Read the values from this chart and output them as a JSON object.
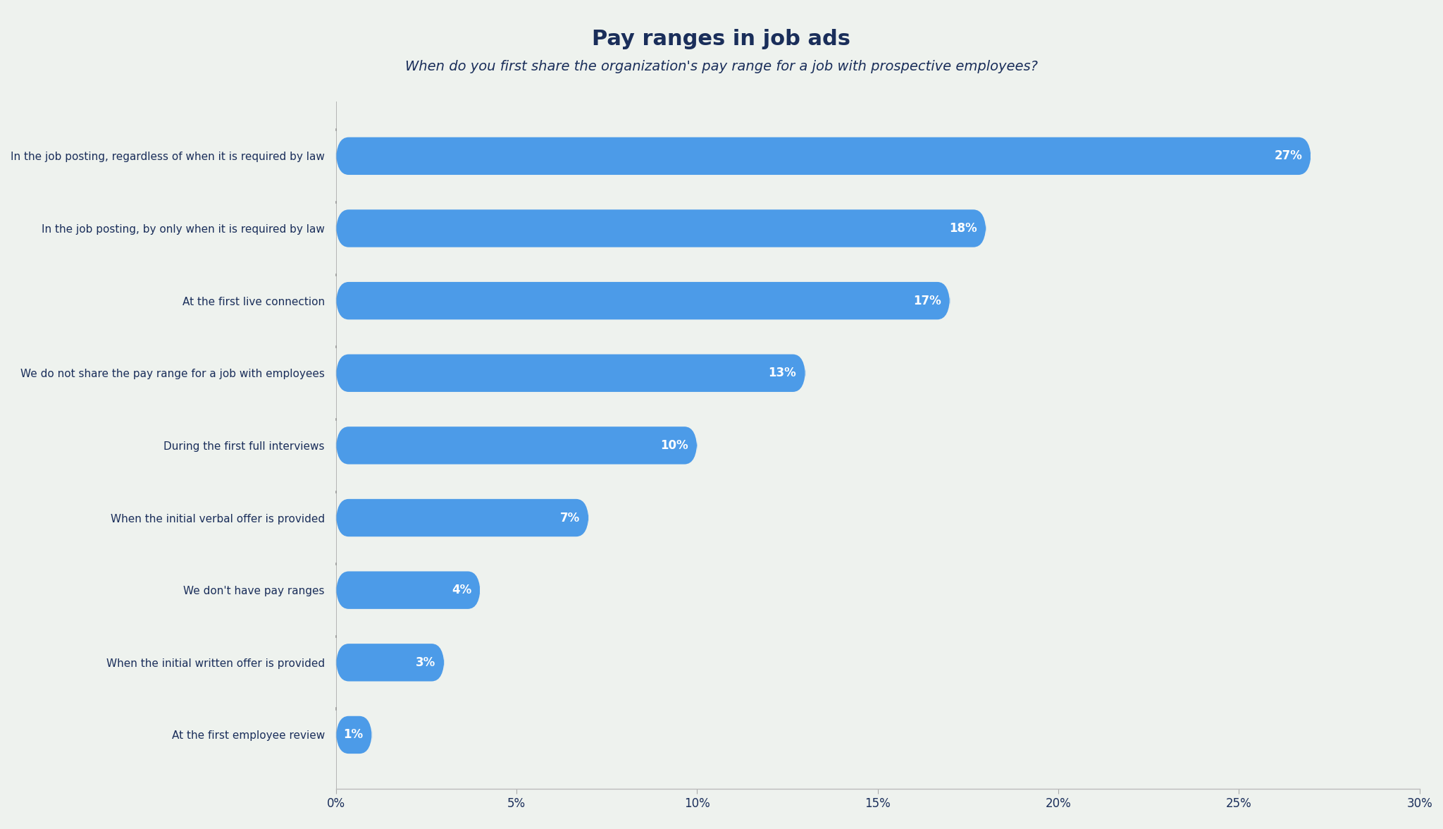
{
  "title": "Pay ranges in job ads",
  "subtitle": "When do you first share the organization's pay range for a job with prospective employees?",
  "categories": [
    "In the job posting, regardless of when it is required by law",
    "In the job posting, by only when it is required by law",
    "At the first live connection",
    "We do not share the pay range for a job with employees",
    "During the first full interviews",
    "When the initial verbal offer is provided",
    "We don't have pay ranges",
    "When the initial written offer is provided",
    "At the first employee review"
  ],
  "values": [
    27,
    18,
    17,
    13,
    10,
    7,
    4,
    3,
    1
  ],
  "labels": [
    "27%",
    "18%",
    "17%",
    "13%",
    "10%",
    "7%",
    "4%",
    "3%",
    "1%"
  ],
  "bar_color": "#4C9BE8",
  "background_color": "#eef2ee",
  "title_color": "#1a2e5a",
  "subtitle_color": "#1a2e5a",
  "label_color": "#ffffff",
  "ytick_color": "#1a2e5a",
  "xtick_color": "#1a2e5a",
  "xlim": [
    0,
    30
  ],
  "xticks": [
    0,
    5,
    10,
    15,
    20,
    25,
    30
  ],
  "xtick_labels": [
    "0%",
    "5%",
    "10%",
    "15%",
    "20%",
    "25%",
    "30%"
  ],
  "title_fontsize": 22,
  "subtitle_fontsize": 14,
  "bar_label_fontsize": 12,
  "ytick_fontsize": 11,
  "xtick_fontsize": 12
}
